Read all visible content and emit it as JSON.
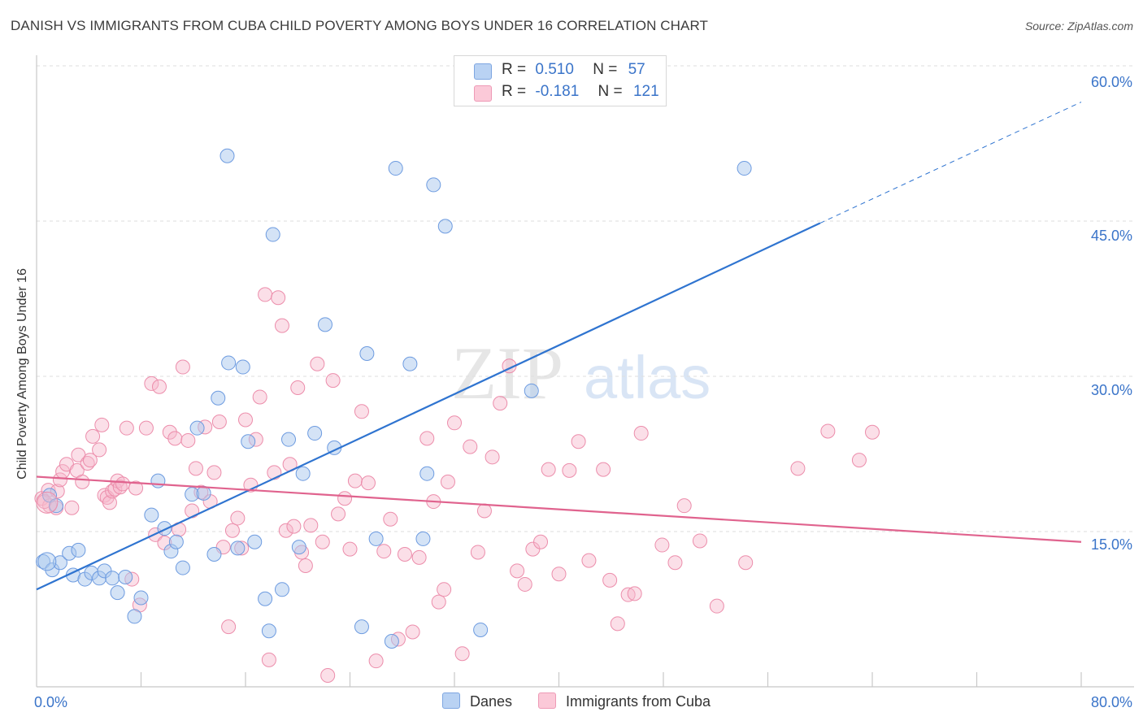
{
  "header": {
    "title": "DANISH VS IMMIGRANTS FROM CUBA CHILD POVERTY AMONG BOYS UNDER 16 CORRELATION CHART",
    "source": "Source: ZipAtlas.com"
  },
  "legend": {
    "rows": [
      {
        "r_label": "R =",
        "r_value": "0.510",
        "n_label": "N =",
        "n_value": "57"
      },
      {
        "r_label": "R =",
        "r_value": "-0.181",
        "n_label": "N =",
        "n_value": "121"
      }
    ],
    "bottom": [
      "Danes",
      "Immigrants from Cuba"
    ]
  },
  "watermark": {
    "part1": "ZIP",
    "part2": "atlas"
  },
  "chart_data": {
    "type": "scatter",
    "title": "DANISH VS IMMIGRANTS FROM CUBA CHILD POVERTY AMONG BOYS UNDER 16 CORRELATION CHART",
    "xlabel": "",
    "ylabel": "Child Poverty Among Boys Under 16",
    "xlim": [
      0,
      80
    ],
    "ylim": [
      0,
      60
    ],
    "x_tick_labels": [
      "0.0%",
      "80.0%"
    ],
    "y_ticks": [
      15,
      30,
      45,
      60
    ],
    "y_tick_labels": [
      "15.0%",
      "30.0%",
      "45.0%",
      "60.0%"
    ],
    "grid": true,
    "colors": {
      "danes": "#a9c7ee",
      "danes_edge": "#6d9be0",
      "danes_line": "#2f74d0",
      "cuba": "#f6b8cb",
      "cuba_edge": "#ec8dab",
      "cuba_line": "#e0638e",
      "axis": "#3a74c9"
    },
    "series": [
      {
        "name": "Danes",
        "R": 0.51,
        "N": 57,
        "trend": {
          "x0": 0,
          "y0": 9.4,
          "x1": 60,
          "y1": 44.8,
          "dash_to_x": 80,
          "dash_to_y": 56.5
        },
        "points": [
          [
            0.5,
            12.1
          ],
          [
            1.2,
            11.3
          ],
          [
            1.8,
            12.0
          ],
          [
            2.5,
            12.9
          ],
          [
            2.8,
            10.8
          ],
          [
            3.2,
            13.2
          ],
          [
            3.7,
            10.4
          ],
          [
            4.2,
            11.0
          ],
          [
            4.8,
            10.5
          ],
          [
            5.2,
            11.2
          ],
          [
            5.8,
            10.5
          ],
          [
            6.2,
            9.1
          ],
          [
            6.8,
            10.6
          ],
          [
            7.5,
            6.8
          ],
          [
            8.0,
            8.6
          ],
          [
            8.8,
            16.6
          ],
          [
            9.3,
            19.9
          ],
          [
            9.8,
            15.3
          ],
          [
            10.3,
            13.1
          ],
          [
            10.7,
            14.0
          ],
          [
            11.2,
            11.5
          ],
          [
            11.9,
            18.6
          ],
          [
            12.3,
            25.0
          ],
          [
            12.8,
            18.7
          ],
          [
            13.6,
            12.8
          ],
          [
            13.9,
            27.9
          ],
          [
            14.7,
            31.3
          ],
          [
            14.6,
            51.3
          ],
          [
            15.4,
            13.4
          ],
          [
            15.8,
            30.9
          ],
          [
            16.2,
            23.7
          ],
          [
            16.7,
            14.0
          ],
          [
            17.5,
            8.5
          ],
          [
            17.8,
            5.4
          ],
          [
            18.1,
            43.7
          ],
          [
            18.8,
            9.4
          ],
          [
            19.3,
            23.9
          ],
          [
            20.1,
            13.5
          ],
          [
            20.4,
            20.6
          ],
          [
            21.3,
            24.5
          ],
          [
            22.1,
            35.0
          ],
          [
            22.8,
            23.1
          ],
          [
            24.9,
            5.8
          ],
          [
            25.3,
            32.2
          ],
          [
            26.0,
            14.3
          ],
          [
            27.2,
            4.4
          ],
          [
            27.5,
            50.1
          ],
          [
            28.6,
            31.2
          ],
          [
            29.6,
            14.3
          ],
          [
            29.9,
            20.6
          ],
          [
            30.4,
            48.5
          ],
          [
            31.3,
            44.5
          ],
          [
            34.0,
            5.5
          ],
          [
            37.9,
            28.6
          ],
          [
            54.2,
            50.1
          ],
          [
            1.0,
            18.5
          ],
          [
            1.5,
            17.5
          ]
        ]
      },
      {
        "name": "Immigrants from Cuba",
        "R": -0.181,
        "N": 121,
        "trend": {
          "x0": 0,
          "y0": 20.3,
          "x1": 80,
          "y1": 14.0
        },
        "points": [
          [
            0.4,
            18.2
          ],
          [
            0.9,
            19.0
          ],
          [
            1.0,
            17.5
          ],
          [
            1.5,
            17.3
          ],
          [
            1.6,
            18.9
          ],
          [
            1.8,
            20.0
          ],
          [
            2.0,
            20.8
          ],
          [
            2.3,
            21.5
          ],
          [
            2.7,
            17.3
          ],
          [
            3.1,
            20.9
          ],
          [
            3.2,
            22.4
          ],
          [
            3.5,
            19.8
          ],
          [
            3.9,
            21.6
          ],
          [
            4.1,
            21.9
          ],
          [
            4.3,
            24.2
          ],
          [
            4.8,
            22.9
          ],
          [
            5.0,
            25.3
          ],
          [
            5.2,
            18.5
          ],
          [
            5.4,
            18.3
          ],
          [
            5.6,
            17.8
          ],
          [
            5.8,
            18.9
          ],
          [
            6.0,
            19.1
          ],
          [
            6.2,
            19.9
          ],
          [
            6.4,
            19.3
          ],
          [
            6.6,
            19.6
          ],
          [
            6.9,
            25.0
          ],
          [
            7.3,
            10.4
          ],
          [
            7.6,
            19.2
          ],
          [
            7.9,
            7.9
          ],
          [
            8.4,
            25.0
          ],
          [
            8.8,
            29.3
          ],
          [
            9.1,
            14.7
          ],
          [
            9.4,
            29.0
          ],
          [
            9.8,
            13.9
          ],
          [
            10.2,
            24.6
          ],
          [
            10.6,
            24.0
          ],
          [
            10.9,
            15.2
          ],
          [
            11.2,
            30.9
          ],
          [
            11.6,
            23.8
          ],
          [
            11.9,
            17.0
          ],
          [
            12.2,
            21.1
          ],
          [
            12.6,
            18.8
          ],
          [
            12.9,
            25.1
          ],
          [
            13.3,
            17.9
          ],
          [
            13.6,
            20.7
          ],
          [
            14.0,
            25.6
          ],
          [
            14.3,
            13.5
          ],
          [
            14.7,
            5.8
          ],
          [
            15.0,
            15.1
          ],
          [
            15.4,
            16.3
          ],
          [
            15.7,
            13.4
          ],
          [
            16.0,
            25.8
          ],
          [
            16.4,
            19.5
          ],
          [
            16.8,
            23.9
          ],
          [
            17.1,
            28.0
          ],
          [
            17.5,
            37.9
          ],
          [
            17.8,
            2.6
          ],
          [
            18.2,
            20.7
          ],
          [
            18.5,
            37.6
          ],
          [
            18.8,
            34.9
          ],
          [
            19.1,
            15.1
          ],
          [
            19.4,
            21.5
          ],
          [
            19.7,
            15.5
          ],
          [
            20.0,
            28.9
          ],
          [
            20.3,
            13.0
          ],
          [
            20.6,
            11.7
          ],
          [
            21.0,
            15.6
          ],
          [
            21.5,
            31.2
          ],
          [
            21.9,
            14.0
          ],
          [
            22.3,
            1.1
          ],
          [
            22.7,
            29.6
          ],
          [
            23.1,
            16.7
          ],
          [
            23.6,
            18.2
          ],
          [
            24.0,
            13.3
          ],
          [
            24.4,
            19.9
          ],
          [
            24.9,
            26.6
          ],
          [
            25.4,
            19.7
          ],
          [
            26.0,
            2.5
          ],
          [
            26.6,
            13.1
          ],
          [
            27.1,
            16.2
          ],
          [
            27.7,
            4.6
          ],
          [
            28.2,
            12.8
          ],
          [
            28.8,
            5.3
          ],
          [
            29.3,
            12.5
          ],
          [
            29.9,
            24.0
          ],
          [
            30.4,
            17.9
          ],
          [
            30.8,
            8.2
          ],
          [
            31.2,
            9.4
          ],
          [
            31.5,
            19.8
          ],
          [
            32.0,
            25.5
          ],
          [
            32.6,
            3.2
          ],
          [
            33.2,
            23.2
          ],
          [
            33.8,
            13.0
          ],
          [
            34.3,
            17.0
          ],
          [
            34.9,
            22.2
          ],
          [
            35.5,
            27.4
          ],
          [
            36.2,
            31.0
          ],
          [
            36.8,
            11.2
          ],
          [
            37.4,
            9.9
          ],
          [
            38.0,
            13.3
          ],
          [
            38.6,
            14.0
          ],
          [
            39.2,
            21.0
          ],
          [
            40.0,
            10.9
          ],
          [
            40.8,
            20.9
          ],
          [
            41.5,
            23.7
          ],
          [
            42.3,
            12.2
          ],
          [
            43.4,
            21.0
          ],
          [
            43.9,
            10.3
          ],
          [
            44.5,
            6.1
          ],
          [
            45.3,
            8.9
          ],
          [
            45.8,
            9.0
          ],
          [
            46.3,
            24.5
          ],
          [
            47.9,
            13.7
          ],
          [
            48.9,
            12.0
          ],
          [
            49.6,
            17.5
          ],
          [
            50.8,
            14.1
          ],
          [
            52.1,
            7.8
          ],
          [
            54.3,
            12.0
          ],
          [
            58.3,
            21.1
          ],
          [
            60.6,
            24.7
          ],
          [
            63.0,
            21.9
          ],
          [
            64.0,
            24.6
          ],
          [
            0.6,
            17.9
          ]
        ]
      }
    ]
  }
}
